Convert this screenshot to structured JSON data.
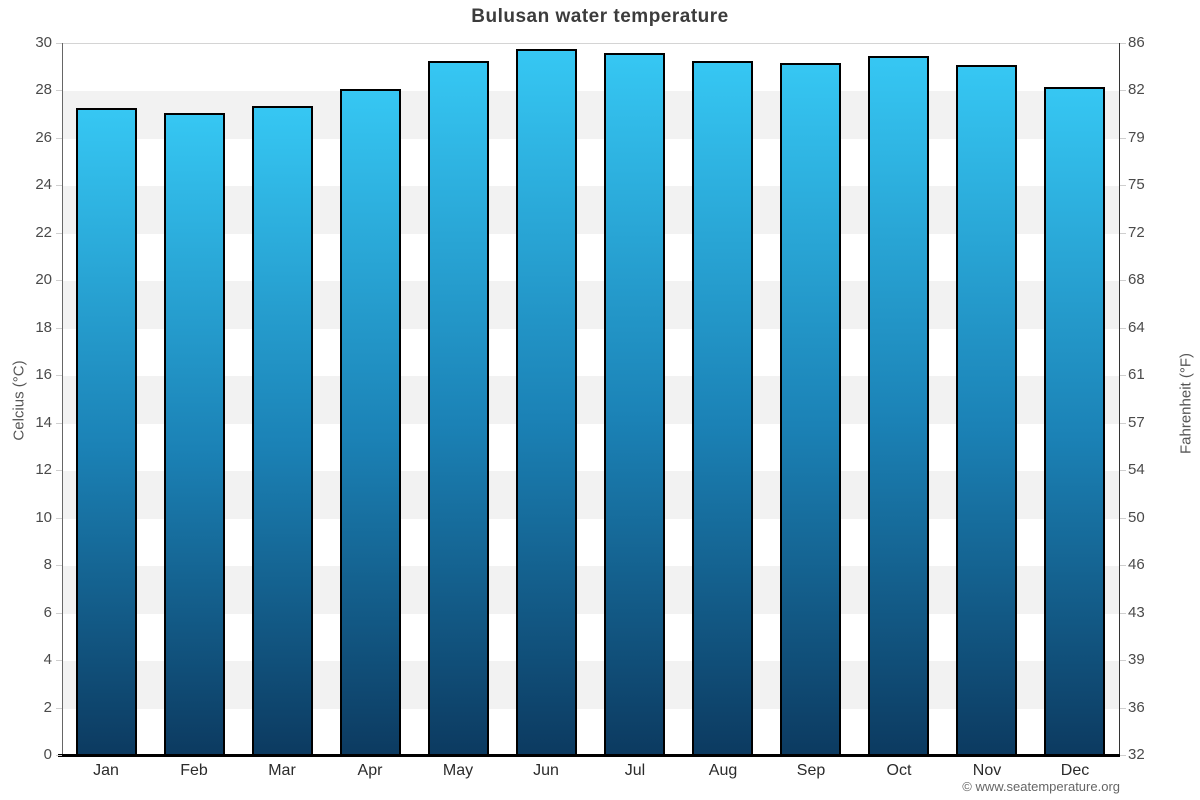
{
  "chart_data": {
    "type": "bar",
    "title": "Bulusan water temperature",
    "categories": [
      "Jan",
      "Feb",
      "Mar",
      "Apr",
      "May",
      "Jun",
      "Jul",
      "Aug",
      "Sep",
      "Oct",
      "Nov",
      "Dec"
    ],
    "values": [
      27.3,
      27.1,
      27.4,
      28.1,
      29.3,
      29.8,
      29.6,
      29.3,
      29.2,
      29.5,
      29.1,
      28.2
    ],
    "unit": "°C",
    "xlabel": "",
    "ylabel_left": "Celcius (°C)",
    "ylabel_right": "Fahrenheit (°F)",
    "ylim": [
      0,
      30
    ],
    "yticks_celsius": [
      30,
      28,
      26,
      24,
      22,
      20,
      18,
      16,
      14,
      12,
      10,
      8,
      6,
      4,
      2,
      0
    ],
    "yticks_fahrenheit": [
      86,
      82,
      79,
      75,
      72,
      68,
      64,
      61,
      57,
      54,
      50,
      46,
      43,
      39,
      36,
      32
    ],
    "grid": "horizontal-striped-bands",
    "legend": "none",
    "colors": {
      "bar_gradient_top": "#36c7f3",
      "bar_gradient_mid": "#1b82b6",
      "bar_gradient_bottom": "#0c3a60",
      "bar_border": "#000000",
      "band_alt": "#f2f2f2",
      "band_base": "#ffffff",
      "title_text": "#3c3c3c",
      "tick_text": "#4a4a4a"
    }
  },
  "footer": {
    "copyright": "© www.seatemperature.org"
  }
}
